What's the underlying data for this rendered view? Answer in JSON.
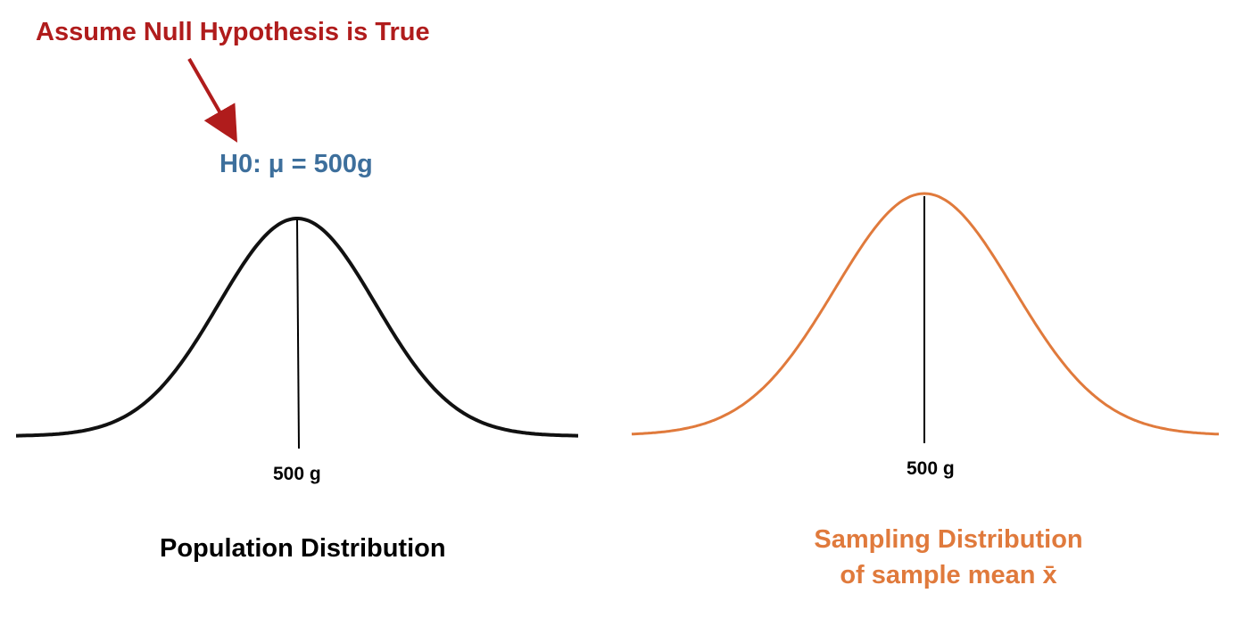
{
  "colors": {
    "annotation": "#b01c1c",
    "hypothesis": "#3d6f9c",
    "population_curve": "#111111",
    "sampling_curve": "#e07a3c",
    "text": "#000000"
  },
  "annotation": {
    "text": "Assume Null Hypothesis is True"
  },
  "hypothesis": {
    "text": "H0: μ = 500g"
  },
  "population": {
    "mean_label": "500 g",
    "caption": "Population Distribution"
  },
  "sampling": {
    "mean_label": "500 g",
    "caption_line1": "Sampling Distribution",
    "caption_line2": "of sample mean x̄"
  }
}
